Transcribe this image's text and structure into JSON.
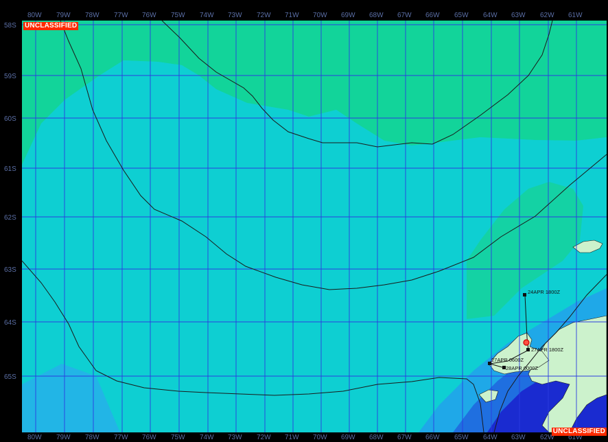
{
  "classification": "UNCLASSIFIED",
  "longitude_labels": [
    "80W",
    "79W",
    "78W",
    "77W",
    "76W",
    "75W",
    "74W",
    "73W",
    "72W",
    "71W",
    "70W",
    "69W",
    "68W",
    "67W",
    "66W",
    "65W",
    "64W",
    "63W",
    "62W",
    "61W"
  ],
  "latitude_labels": [
    "58S",
    "59S",
    "60S",
    "61S",
    "62S",
    "63S",
    "64S",
    "65S"
  ],
  "track": [
    {
      "label": "24APR 1800Z"
    },
    {
      "label": "27APR 1800Z"
    },
    {
      "label": "27APR 0600Z"
    },
    {
      "label": "28APR 0000Z"
    }
  ],
  "colors": {
    "frame": "#000000",
    "grid": "#2b3ce0",
    "contour": "#1a1a1a",
    "zone_green": "#12d49a",
    "zone_cyan": "#0fcfcf",
    "zone_cyan_deep": "#12bde0",
    "zone_blue_light": "#22a6e8",
    "zone_blue": "#1f6fe0",
    "zone_navy": "#1a2bd0",
    "land": "#ccf2cc",
    "classification_bg": "#ff2a00",
    "center_marker": "#e8302a"
  }
}
